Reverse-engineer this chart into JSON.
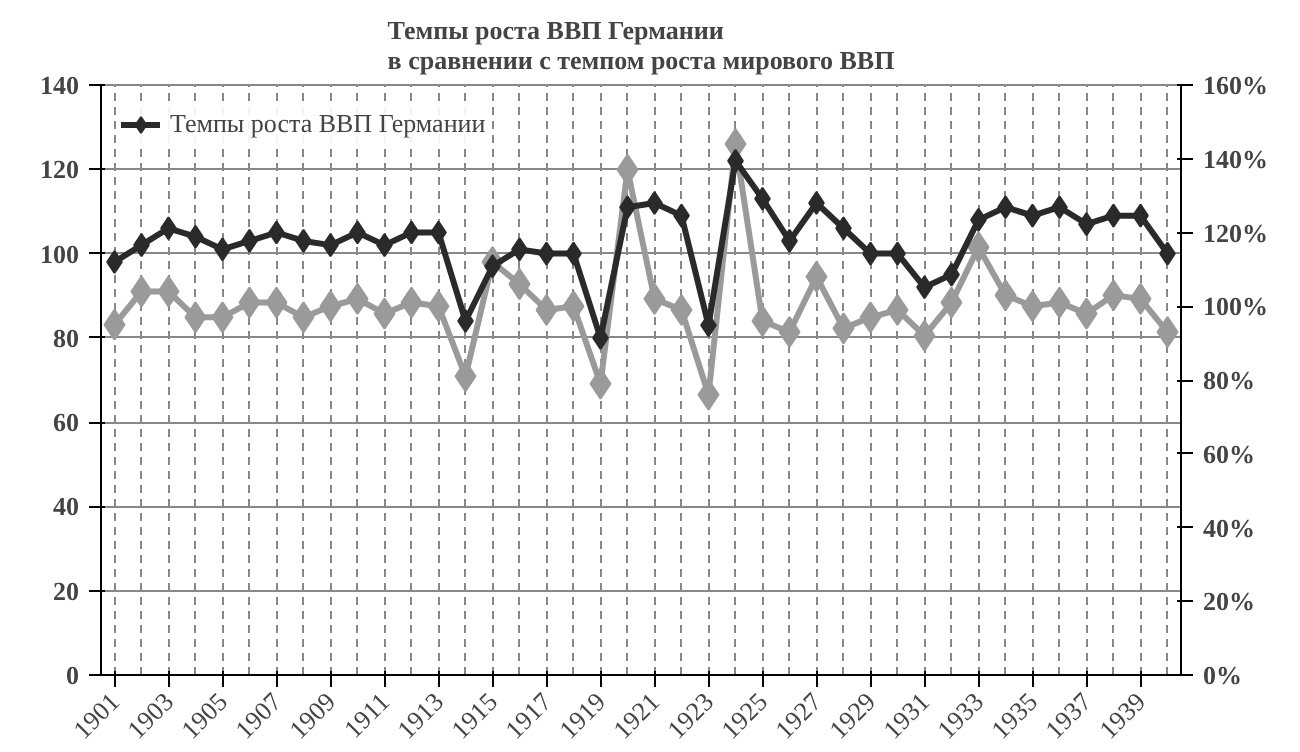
{
  "chart_data": {
    "type": "line",
    "title": "Темпы роста ВВП Германии\nв сравнении с темпом роста мирового ВВП",
    "x": [
      1901,
      1902,
      1903,
      1904,
      1905,
      1906,
      1907,
      1908,
      1909,
      1910,
      1911,
      1912,
      1913,
      1914,
      1915,
      1916,
      1917,
      1918,
      1919,
      1920,
      1921,
      1922,
      1923,
      1924,
      1925,
      1926,
      1927,
      1928,
      1929,
      1930,
      1931,
      1932,
      1933,
      1934,
      1935,
      1936,
      1937,
      1938,
      1939,
      1940
    ],
    "series": [
      {
        "name": "Темпы роста ВВП Германии",
        "color": "#2a2a2a",
        "values": [
          98,
          102,
          106,
          104,
          101,
          103,
          105,
          103,
          102,
          105,
          102,
          105,
          105,
          84,
          97,
          101,
          100,
          100,
          80,
          111,
          112,
          109,
          83,
          122,
          113,
          103,
          112,
          106,
          100,
          100,
          92,
          95,
          108,
          111,
          109,
          111,
          107,
          109,
          109,
          100
        ]
      },
      {
        "color": "#9a9a9a",
        "axis": "y2",
        "values": [
          95,
          104,
          104,
          97,
          97,
          101,
          101,
          97,
          100,
          102,
          98,
          101,
          100,
          81,
          112,
          106,
          99,
          100,
          79,
          137,
          102,
          99,
          76,
          144,
          96,
          93,
          108,
          94,
          97,
          99,
          92,
          101,
          116,
          103,
          100,
          101,
          98,
          103,
          102,
          93
        ]
      }
    ],
    "xlim": [
      1900.5,
      1940.5
    ],
    "xticks": [
      1901,
      1903,
      1905,
      1907,
      1909,
      1911,
      1913,
      1915,
      1917,
      1919,
      1921,
      1923,
      1925,
      1927,
      1929,
      1931,
      1933,
      1935,
      1937,
      1939
    ],
    "ylim": [
      0,
      140
    ],
    "yticks": [
      0,
      20,
      40,
      60,
      80,
      100,
      120,
      140
    ],
    "y2lim": [
      0,
      160
    ],
    "y2ticks": [
      {
        "value": 0,
        "label": "0%"
      },
      {
        "value": 20,
        "label": "20%"
      },
      {
        "value": 40,
        "label": "40%"
      },
      {
        "value": 60,
        "label": "60%"
      },
      {
        "value": 80,
        "label": "80%"
      },
      {
        "value": 100,
        "label": "100%"
      },
      {
        "value": 120,
        "label": "120%"
      },
      {
        "value": 140,
        "label": "140%"
      },
      {
        "value": 160,
        "label": "160%"
      }
    ],
    "grid": true,
    "legend": "top",
    "marker": "diamond",
    "line_style": "solid"
  }
}
